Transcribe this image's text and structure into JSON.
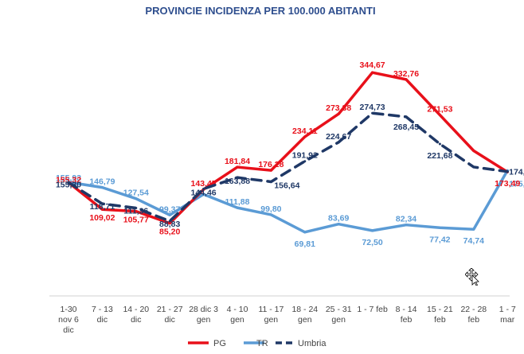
{
  "chart_data": {
    "type": "line",
    "title": "PROVINCIE INCIDENZA PER 100.000 ABITANTI",
    "xlabel": "",
    "ylabel": "",
    "ylim": [
      -40,
      380
    ],
    "grid": false,
    "legend_position": "bottom",
    "categories": [
      [
        "1-30",
        "nov 6",
        "dic"
      ],
      [
        "7 - 13",
        "dic"
      ],
      [
        "14 - 20",
        "dic"
      ],
      [
        "21 - 27",
        "dic"
      ],
      [
        "28 dic 3",
        "gen"
      ],
      [
        "4 - 10",
        "gen"
      ],
      [
        "11 - 17",
        "gen"
      ],
      [
        "18 - 24",
        "gen"
      ],
      [
        "25 - 31",
        "gen"
      ],
      [
        "1 - 7 feb"
      ],
      [
        "8 - 14",
        "feb"
      ],
      [
        "15 - 21",
        "feb"
      ],
      [
        "22 - 28",
        "feb"
      ],
      [
        "1 - 7",
        "mar"
      ]
    ],
    "series": [
      {
        "name": "PG",
        "color": "#e8101a",
        "dash": "solid",
        "values": [
          155.32,
          109.02,
          105.77,
          85.2,
          143.45,
          181.84,
          176.28,
          234.11,
          273.38,
          344.67,
          332.76,
          271.53,
          210.0,
          173.49
        ],
        "labels": [
          "155,32",
          "109,02",
          "105,77",
          "85,20",
          "143,45",
          "181,84",
          "176,28",
          "234,11",
          "273,38",
          "344,67",
          "332,76",
          "271,53",
          "",
          "173,49"
        ]
      },
      {
        "name": "TR",
        "color": "#5b9bd5",
        "dash": "solid",
        "values": [
          155.93,
          146.79,
          127.54,
          99.37,
          135.0,
          111.88,
          99.8,
          69.81,
          83.69,
          72.5,
          82.34,
          77.42,
          74.74,
          175.87
        ],
        "labels": [
          "155,93",
          "146,79",
          "127,54",
          "99,37",
          "",
          "111,88",
          "99,80",
          "69,81",
          "83,69",
          "72,50",
          "82,34",
          "77,42",
          "74,74",
          "175,87"
        ]
      },
      {
        "name": "Umbria",
        "color": "#1f3866",
        "dash": "dashed",
        "values": [
          155.3,
          118.71,
          111.36,
          88.83,
          144.46,
          163.88,
          156.64,
          191.92,
          224.67,
          274.73,
          268.45,
          221.68,
          182.0,
          174.1
        ],
        "labels": [
          "155,30",
          "118,71",
          "111,36",
          "88,83",
          "144,46",
          "163,88",
          "156,64",
          "191,92",
          "224,67",
          "274,73",
          "268,45",
          "221,68",
          "",
          "174,10"
        ]
      }
    ]
  },
  "cursor": {
    "icon": "move-cursor-icon"
  }
}
